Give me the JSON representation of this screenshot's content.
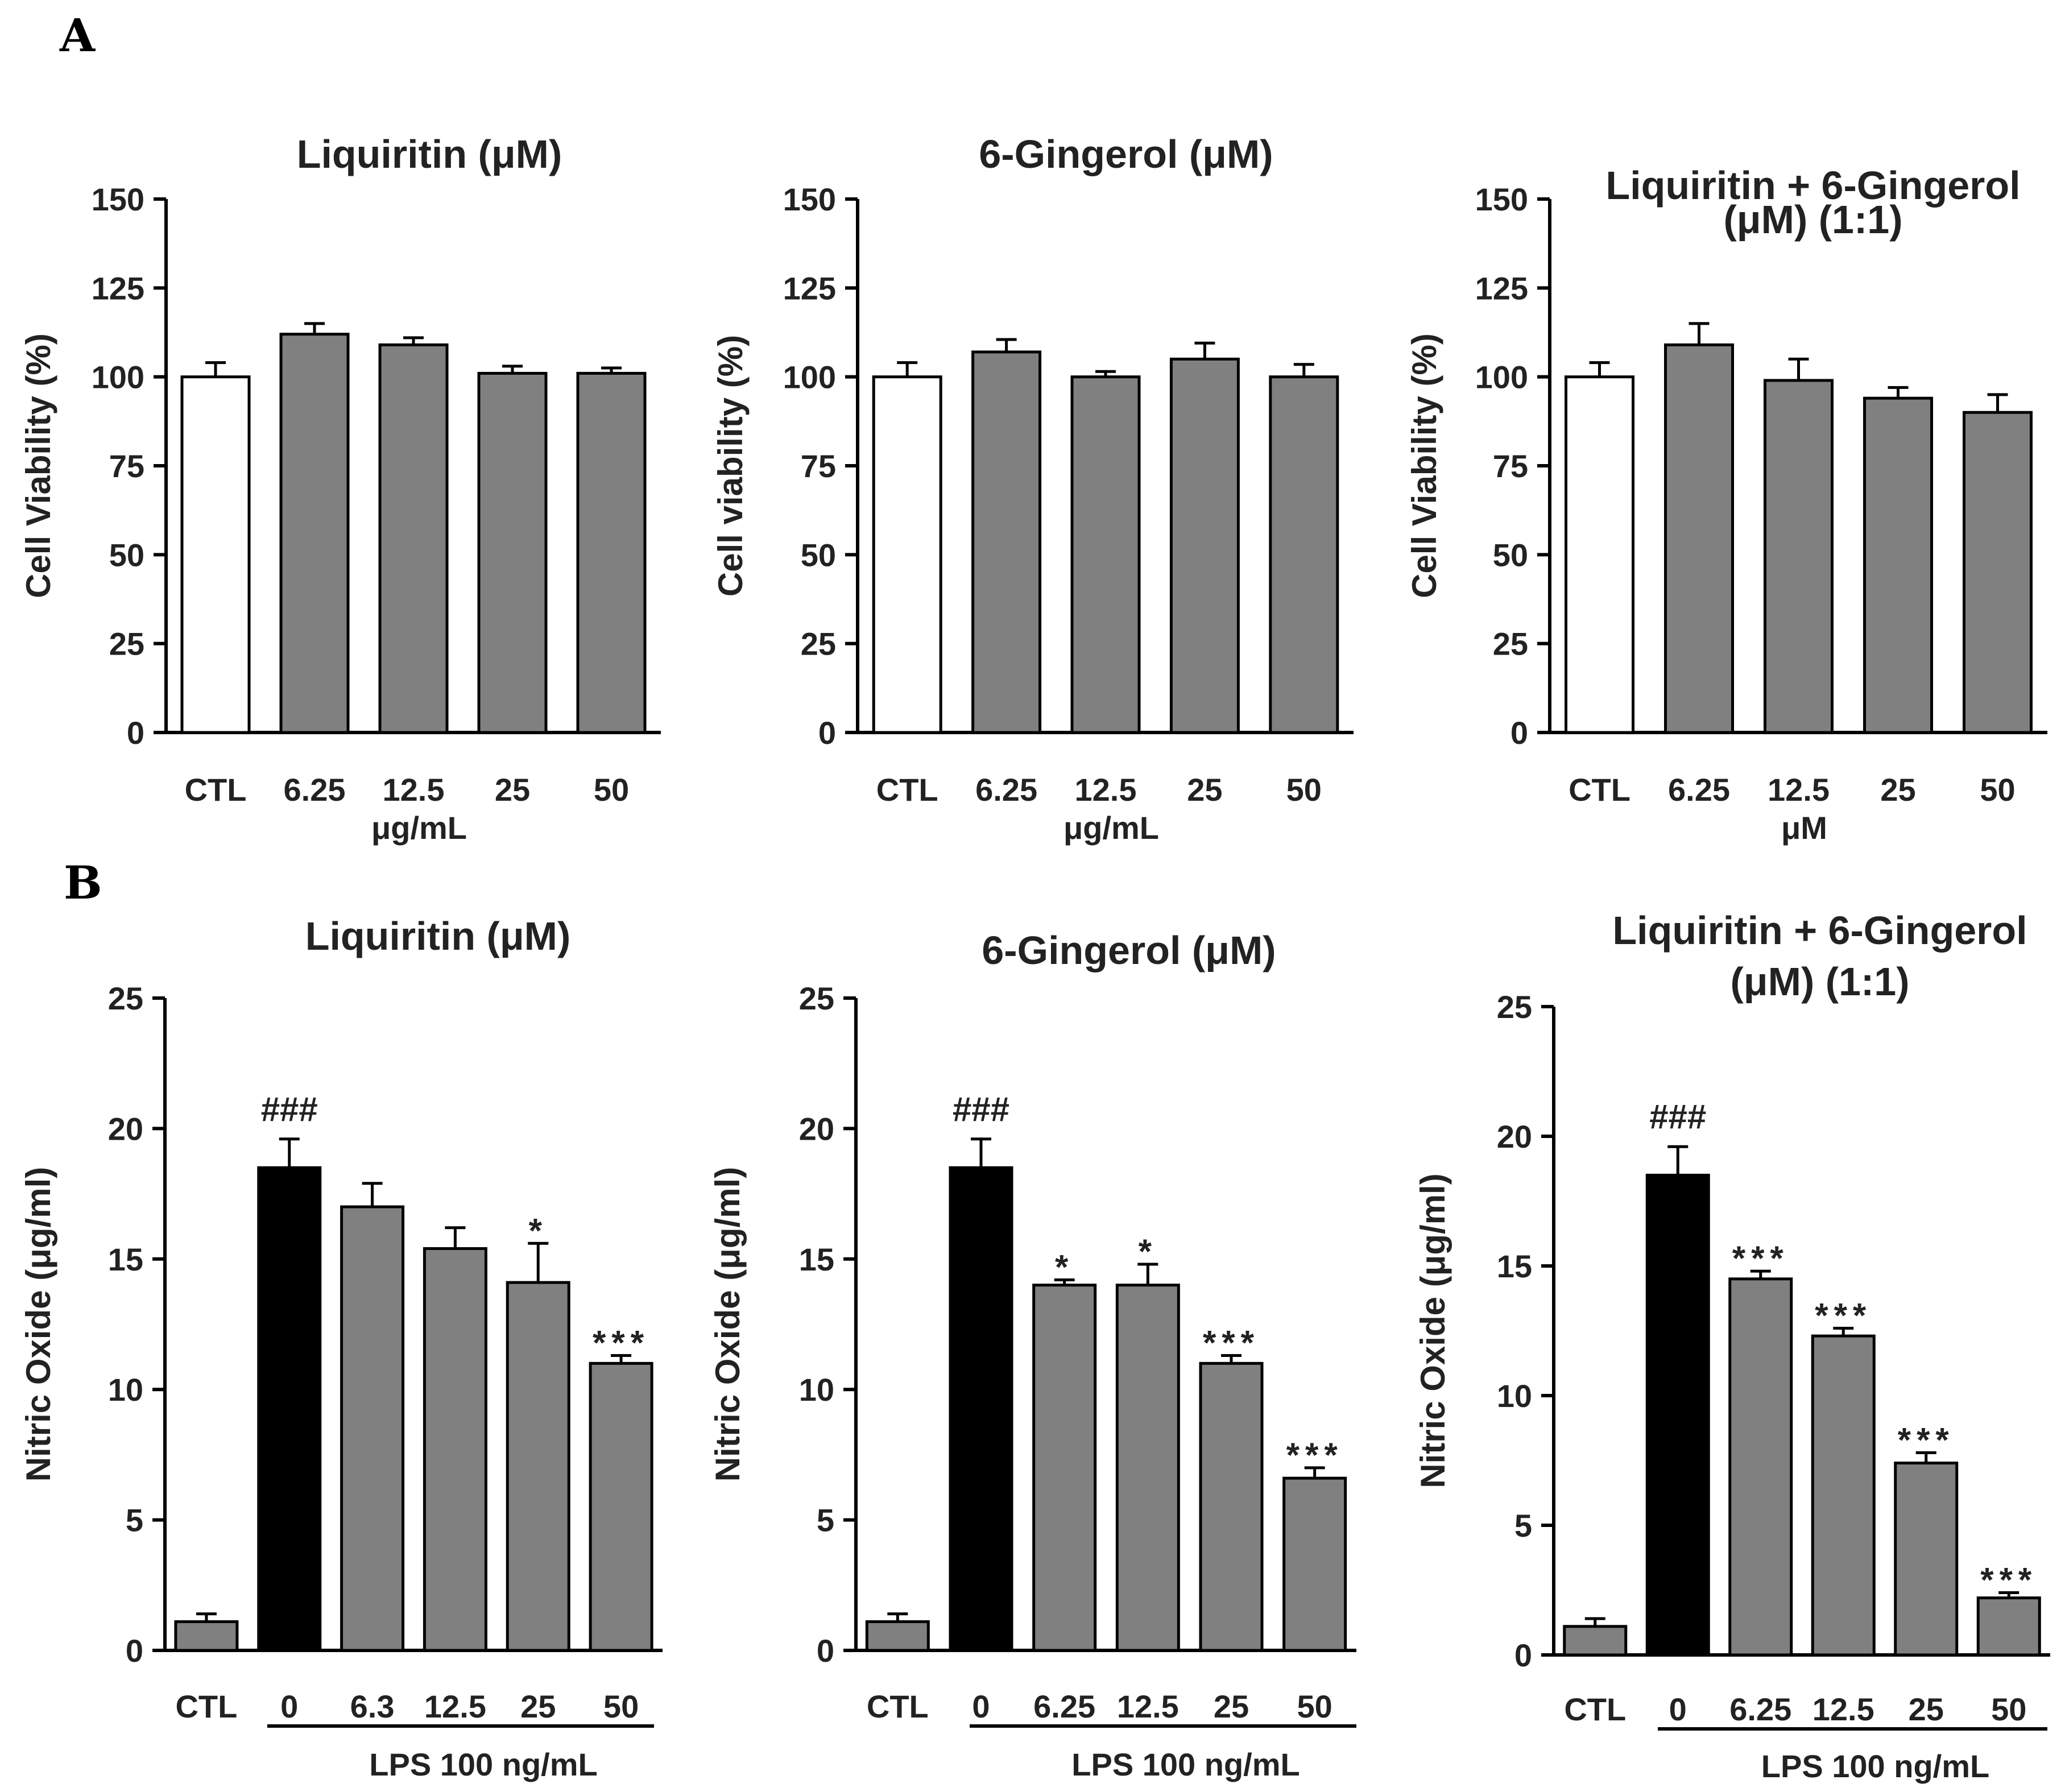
{
  "figure": {
    "panel_A": "A",
    "panel_B": "B"
  },
  "colors": {
    "control": "#ffffff",
    "treated": "#808080",
    "lps": "#000000"
  },
  "chart_data": [
    {
      "type": "bar",
      "title": [
        "Liquiritin (μM)"
      ],
      "ylabel": "Cell Viability (%)",
      "categories": [
        "CTL",
        "6.25",
        "12.5",
        "25",
        "50"
      ],
      "values": [
        100,
        112,
        109,
        101,
        101
      ],
      "errors": [
        4,
        3,
        2,
        2,
        1.5
      ],
      "fills": [
        "control",
        "treated",
        "treated",
        "treated",
        "treated"
      ],
      "annotations": [
        "",
        "",
        "",
        "",
        ""
      ],
      "ylim": [
        0,
        150
      ],
      "yticks": [
        0,
        25,
        50,
        75,
        100,
        125,
        150
      ],
      "xlabel": "μg/mL",
      "lps_label": ""
    },
    {
      "type": "bar",
      "title": [
        "6-Gingerol (μM)"
      ],
      "ylabel": "Cell viability (%)",
      "categories": [
        "CTL",
        "6.25",
        "12.5",
        "25",
        "50"
      ],
      "values": [
        100,
        107,
        100,
        105,
        100
      ],
      "errors": [
        4,
        3.5,
        1.5,
        4.5,
        3.5
      ],
      "fills": [
        "control",
        "treated",
        "treated",
        "treated",
        "treated"
      ],
      "annotations": [
        "",
        "",
        "",
        "",
        ""
      ],
      "ylim": [
        0,
        150
      ],
      "yticks": [
        0,
        25,
        50,
        75,
        100,
        125,
        150
      ],
      "xlabel": "μg/mL",
      "lps_label": ""
    },
    {
      "type": "bar",
      "title": [
        "Liquiritin + 6-Gingerol",
        "(μM) (1:1)"
      ],
      "ylabel": "Cell Viability (%)",
      "categories": [
        "CTL",
        "6.25",
        "12.5",
        "25",
        "50"
      ],
      "values": [
        100,
        109,
        99,
        94,
        90
      ],
      "errors": [
        4,
        6,
        6,
        3,
        5
      ],
      "fills": [
        "control",
        "treated",
        "treated",
        "treated",
        "treated"
      ],
      "annotations": [
        "",
        "",
        "",
        "",
        ""
      ],
      "ylim": [
        0,
        150
      ],
      "yticks": [
        0,
        25,
        50,
        75,
        100,
        125,
        150
      ],
      "xlabel": "μM",
      "lps_label": ""
    },
    {
      "type": "bar",
      "title": [
        "Liquiritin  (μM)"
      ],
      "ylabel": "Nitric Oxide (μg/ml)",
      "categories": [
        "CTL",
        "0",
        "6.3",
        "12.5",
        "25",
        "50"
      ],
      "values": [
        1.1,
        18.5,
        17.0,
        15.4,
        14.1,
        11.0
      ],
      "errors": [
        0.3,
        1.1,
        0.9,
        0.8,
        1.5,
        0.3
      ],
      "fills": [
        "treated",
        "lps",
        "treated",
        "treated",
        "treated",
        "treated"
      ],
      "annotations": [
        "",
        "###",
        "",
        "",
        "*",
        "***"
      ],
      "ylim": [
        0,
        25
      ],
      "yticks": [
        0,
        5,
        10,
        15,
        20,
        25
      ],
      "xlabel": "",
      "lps_label": "LPS 100 ng/mL"
    },
    {
      "type": "bar",
      "title": [
        "6-Gingerol  (μM)"
      ],
      "ylabel": "Nitric Oxide (μg/ml)",
      "categories": [
        "CTL",
        "0",
        "6.25",
        "12.5",
        "25",
        "50"
      ],
      "values": [
        1.1,
        18.5,
        14.0,
        14.0,
        11.0,
        6.6
      ],
      "errors": [
        0.3,
        1.1,
        0.2,
        0.8,
        0.3,
        0.4
      ],
      "fills": [
        "treated",
        "lps",
        "treated",
        "treated",
        "treated",
        "treated"
      ],
      "annotations": [
        "",
        "###",
        "*",
        "*",
        "***",
        "***"
      ],
      "ylim": [
        0,
        25
      ],
      "yticks": [
        0,
        5,
        10,
        15,
        20,
        25
      ],
      "xlabel": "",
      "lps_label": "LPS 100 ng/mL"
    },
    {
      "type": "bar",
      "title": [
        "Liquiritin + 6-Gingerol",
        "(μM) (1:1)"
      ],
      "ylabel": "Nitric Oxide (μg/ml)",
      "categories": [
        "CTL",
        "0",
        "6.25",
        "12.5",
        "25",
        "50"
      ],
      "values": [
        1.1,
        18.5,
        14.5,
        12.3,
        7.4,
        2.2
      ],
      "errors": [
        0.3,
        1.1,
        0.3,
        0.3,
        0.4,
        0.2
      ],
      "fills": [
        "treated",
        "lps",
        "treated",
        "treated",
        "treated",
        "treated"
      ],
      "annotations": [
        "",
        "###",
        "***",
        "***",
        "***",
        "***"
      ],
      "ylim": [
        0,
        25
      ],
      "yticks": [
        0,
        5,
        10,
        15,
        20,
        25
      ],
      "xlabel": "",
      "lps_label": "LPS 100 ng/mL"
    }
  ]
}
